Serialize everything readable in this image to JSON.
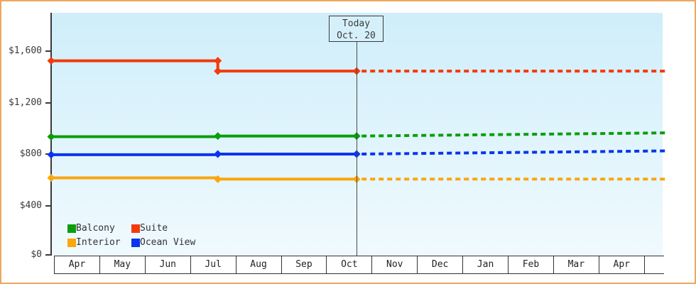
{
  "colors": {
    "frame": "#eda860",
    "plot_bg_top": "#cfeefa",
    "plot_bg_bottom": "#f0fafe",
    "axis": "#3a3a3a",
    "text": "#333333",
    "balcony": "#0b9e0b",
    "suite": "#f43a0c",
    "interior": "#fba60d",
    "ocean_view": "#0b34ee"
  },
  "chart_data": {
    "type": "line",
    "title": "",
    "xlabel": "",
    "ylabel": "",
    "x_unit": "months since chart start (Apr)",
    "xlim": [
      0,
      13.48
    ],
    "ylim": [
      0,
      1600
    ],
    "grid": false,
    "legend_position": "bottom-left-inside",
    "y_ticks": [
      {
        "label": "$1,600",
        "value": 1600
      },
      {
        "label": "$1,200",
        "value": 1200
      },
      {
        "label": "$800",
        "value": 800
      },
      {
        "label": "$400",
        "value": 400
      },
      {
        "label": "$0",
        "value": 0
      }
    ],
    "x_months": [
      "Apr",
      "May",
      "Jun",
      "Jul",
      "Aug",
      "Sep",
      "Oct",
      "Nov",
      "Dec",
      "Jan",
      "Feb",
      "Mar",
      "Apr"
    ],
    "today": {
      "label_line1": "Today",
      "label_line2": "Oct. 20",
      "x": 6.69
    },
    "series": [
      {
        "name": "Balcony",
        "color": "#0b9e0b",
        "solid": [
          [
            0,
            935
          ],
          [
            3.65,
            935
          ],
          [
            3.65,
            940
          ],
          [
            6.69,
            940
          ]
        ],
        "projected": [
          [
            6.69,
            940
          ],
          [
            13.48,
            965
          ]
        ],
        "markers": [
          [
            0,
            935
          ],
          [
            3.65,
            940
          ],
          [
            6.69,
            940
          ]
        ]
      },
      {
        "name": "Suite",
        "color": "#f43a0c",
        "solid": [
          [
            0,
            1525
          ],
          [
            3.65,
            1525
          ],
          [
            3.65,
            1445
          ],
          [
            6.69,
            1445
          ]
        ],
        "projected": [
          [
            6.69,
            1445
          ],
          [
            13.48,
            1445
          ]
        ],
        "markers": [
          [
            0,
            1525
          ],
          [
            3.65,
            1525
          ],
          [
            3.65,
            1445
          ],
          [
            6.69,
            1445
          ]
        ]
      },
      {
        "name": "Interior",
        "color": "#fba60d",
        "solid": [
          [
            0,
            615
          ],
          [
            3.65,
            615
          ],
          [
            3.65,
            605
          ],
          [
            6.69,
            605
          ]
        ],
        "projected": [
          [
            6.69,
            605
          ],
          [
            13.48,
            605
          ]
        ],
        "markers": [
          [
            0,
            615
          ],
          [
            3.65,
            605
          ],
          [
            6.69,
            605
          ]
        ]
      },
      {
        "name": "Ocean View",
        "color": "#0b34ee",
        "solid": [
          [
            0,
            795
          ],
          [
            3.65,
            795
          ],
          [
            3.65,
            800
          ],
          [
            6.69,
            800
          ]
        ],
        "projected": [
          [
            6.69,
            800
          ],
          [
            13.48,
            825
          ]
        ],
        "markers": [
          [
            0,
            795
          ],
          [
            3.65,
            800
          ],
          [
            6.69,
            800
          ]
        ]
      }
    ],
    "legend": [
      {
        "label": "Balcony",
        "color": "#0b9e0b"
      },
      {
        "label": "Suite",
        "color": "#f43a0c"
      },
      {
        "label": "Interior",
        "color": "#fba60d"
      },
      {
        "label": "Ocean View",
        "color": "#0b34ee"
      }
    ]
  }
}
